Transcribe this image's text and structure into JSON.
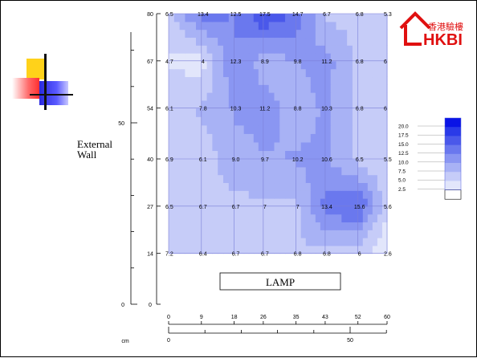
{
  "logo": {
    "chinese": "香港驗樓",
    "english": "HKBI"
  },
  "wall_label": {
    "line1": "External",
    "line2": "Wall"
  },
  "lamp_label": "LAMP",
  "outer_axes": {
    "y_ticks": [
      0,
      50
    ],
    "x_ticks": [
      0,
      50
    ],
    "x_unit": "cm"
  },
  "chart_data": {
    "type": "heatmap",
    "x": [
      0,
      9,
      18,
      26,
      35,
      43,
      52,
      60
    ],
    "y": [
      14,
      27,
      40,
      54,
      67,
      80
    ],
    "y_tick_labels": [
      0,
      14,
      27,
      40,
      54,
      67,
      80
    ],
    "x_tick_labels": [
      0,
      9,
      18,
      26,
      35,
      43,
      52,
      60
    ],
    "values": [
      [
        7.2,
        6.4,
        6.7,
        6.7,
        6.8,
        6.8,
        6,
        2.6
      ],
      [
        6.5,
        6.7,
        6.7,
        7,
        7,
        13.4,
        15.6,
        5.6
      ],
      [
        6.9,
        6.1,
        9.0,
        9.7,
        10.2,
        10.6,
        6.5,
        5.5
      ],
      [
        6.1,
        7.8,
        10.3,
        11.2,
        8.8,
        10.3,
        6.8,
        6
      ],
      [
        4.7,
        4,
        12.3,
        8.9,
        9.8,
        11.2,
        6.8,
        6
      ],
      [
        6.5,
        13.4,
        12.5,
        17.5,
        14.7,
        6.7,
        6.8,
        5.3
      ]
    ],
    "value_labels": [
      [
        "7.2",
        "6.4",
        "6.7",
        "6.7",
        "6.8",
        "6.8",
        "6",
        "2.6"
      ],
      [
        "6.5",
        "6.7",
        "6.7",
        "7",
        "7",
        "13.4",
        "15.6",
        "5.6"
      ],
      [
        "6.9",
        "6.1",
        "9.0",
        "9.7",
        "10.2",
        "10.6",
        "6.5",
        "5.5"
      ],
      [
        "6.1",
        "7.8",
        "10.3",
        "11.2",
        "8.8",
        "10.3",
        "6.8",
        "6"
      ],
      [
        "4.7",
        "4",
        "12.3",
        "8.9",
        "9.8",
        "11.2",
        "6.8",
        "6"
      ],
      [
        "6.5",
        "13.4",
        "12.5",
        "17.5",
        "14.7",
        "6.7",
        "6.8",
        "5.3"
      ]
    ],
    "legend": {
      "levels": [
        "20.0",
        "17.5",
        "15.0",
        "12.5",
        "10.0",
        "7.5",
        "5.0",
        "2.5"
      ],
      "colors": [
        "#0a14e6",
        "#2a3ae8",
        "#4a58ea",
        "#6a78ee",
        "#8a96f2",
        "#a8b2f5",
        "#c6ccf8",
        "#e2e6fb",
        "#ffffff"
      ],
      "placement": "right"
    },
    "xlim": [
      0,
      60
    ],
    "ylim": [
      0,
      80
    ]
  }
}
